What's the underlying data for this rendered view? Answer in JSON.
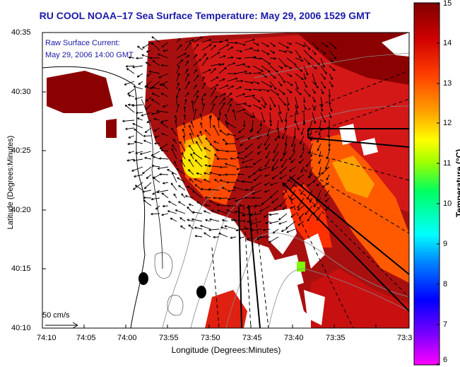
{
  "title": "RU COOL  NOAA–17  Sea Surface Temperature:  May 29, 2006 1529 GMT",
  "overlay": {
    "line1": "Raw Surface Current:",
    "line2": "May 29, 2006 14:00 GMT"
  },
  "scale_label": "50 cm/s",
  "axes": {
    "xlabel": "Longitude (Degrees:Minutes)",
    "ylabel": "Latitude (Degrees:Minutes)",
    "xticks": [
      "74:10",
      "74:05",
      "74:00",
      "73:55",
      "73:50",
      "73:45",
      "73:40",
      "73:35",
      "73:3"
    ],
    "yticks": [
      "40:35",
      "40:30",
      "40:25",
      "40:20",
      "40:15",
      "40:10"
    ]
  },
  "colorbar": {
    "label": "Temperature (°C)",
    "ticks": [
      "15",
      "14",
      "13",
      "12",
      "11",
      "10",
      "9",
      "8",
      "7",
      "6"
    ],
    "min": 6,
    "max": 15,
    "stops": [
      "#ff00ff",
      "#7f00ff",
      "#0000ff",
      "#0080ff",
      "#00ffff",
      "#00ff80",
      "#80ff00",
      "#ffff00",
      "#ffa500",
      "#ff5000",
      "#d00000",
      "#800000"
    ]
  },
  "colors": {
    "title": "#1a1aa8",
    "sst_warm": "#8b0000",
    "sst_hot": "#d01010",
    "sst_mid": "#ff6a00",
    "sst_cool": "#ffd000"
  }
}
